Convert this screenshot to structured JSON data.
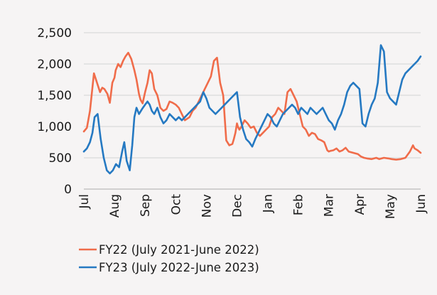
{
  "chart_data": {
    "type": "line",
    "title": "",
    "xlabel": "",
    "ylabel": "",
    "ylim": [
      0,
      2500
    ],
    "yticks": [
      0,
      500,
      1000,
      1500,
      2000,
      2500
    ],
    "ytick_labels": [
      "0",
      "500",
      "1,000",
      "1,500",
      "2,000",
      "2,500"
    ],
    "categories": [
      "Jul",
      "Aug",
      "Sep",
      "Oct",
      "Nov",
      "Dec",
      "Jan",
      "Feb",
      "Mar",
      "Apr",
      "May",
      "Jun"
    ],
    "xlim": [
      0,
      11
    ],
    "grid": "horizontal",
    "legend_position": "bottom",
    "series": [
      {
        "name": "FY22 (July 2021-June 2022)",
        "color": "#f06c4a",
        "x": [
          0,
          0.1,
          0.2,
          0.33,
          0.43,
          0.53,
          0.6,
          0.67,
          0.77,
          0.85,
          0.93,
          1.0,
          1.04,
          1.12,
          1.2,
          1.28,
          1.36,
          1.45,
          1.55,
          1.65,
          1.72,
          1.8,
          1.85,
          1.92,
          2.0,
          2.08,
          2.15,
          2.22,
          2.3,
          2.4,
          2.5,
          2.6,
          2.7,
          2.8,
          2.9,
          3.0,
          3.1,
          3.2,
          3.3,
          3.45,
          3.55,
          3.65,
          3.75,
          3.85,
          3.95,
          4.05,
          4.15,
          4.25,
          4.35,
          4.45,
          4.55,
          4.65,
          4.75,
          4.85,
          4.9,
          4.95,
          5.0,
          5.03,
          5.08,
          5.15,
          5.25,
          5.35,
          5.45,
          5.55,
          5.65,
          5.75,
          5.85,
          5.95,
          6.05,
          6.15,
          6.25,
          6.35,
          6.45,
          6.55,
          6.65,
          6.75,
          6.85,
          6.95,
          7.05,
          7.15,
          7.25,
          7.35,
          7.45,
          7.55,
          7.65,
          7.75,
          7.85,
          7.95,
          8.0,
          8.05,
          8.15,
          8.25,
          8.35,
          8.45,
          8.55,
          8.65,
          8.8,
          8.95,
          9.05,
          9.15,
          9.25,
          9.4,
          9.55,
          9.65,
          9.8,
          9.95,
          10.05,
          10.2,
          10.35,
          10.5,
          10.65,
          10.75,
          10.8,
          10.9,
          11.0
        ],
        "y": [
          920,
          980,
          1250,
          1850,
          1700,
          1550,
          1620,
          1600,
          1520,
          1380,
          1700,
          1780,
          1900,
          2000,
          1950,
          2050,
          2120,
          2180,
          2080,
          1900,
          1750,
          1520,
          1430,
          1370,
          1550,
          1700,
          1900,
          1850,
          1600,
          1500,
          1300,
          1250,
          1280,
          1400,
          1380,
          1350,
          1300,
          1200,
          1100,
          1150,
          1250,
          1300,
          1400,
          1500,
          1600,
          1700,
          1800,
          2050,
          2100,
          1700,
          1500,
          780,
          700,
          720,
          800,
          900,
          1050,
          1000,
          950,
          1000,
          1100,
          1050,
          980,
          1000,
          900,
          850,
          900,
          950,
          1000,
          1150,
          1200,
          1300,
          1250,
          1200,
          1550,
          1600,
          1500,
          1400,
          1200,
          1000,
          950,
          850,
          900,
          880,
          800,
          780,
          750,
          620,
          600,
          610,
          620,
          650,
          600,
          620,
          660,
          600,
          580,
          560,
          520,
          500,
          490,
          480,
          500,
          480,
          500,
          490,
          480,
          470,
          480,
          500,
          600,
          700,
          650,
          620,
          580
        ]
      },
      {
        "name": "FY23 (July 2022-June 2023)",
        "color": "#2579c2",
        "x": [
          0,
          0.1,
          0.2,
          0.28,
          0.35,
          0.45,
          0.55,
          0.65,
          0.75,
          0.85,
          0.95,
          1.05,
          1.15,
          1.25,
          1.32,
          1.4,
          1.5,
          1.58,
          1.65,
          1.72,
          1.8,
          1.9,
          2.0,
          2.08,
          2.15,
          2.22,
          2.3,
          2.4,
          2.5,
          2.6,
          2.7,
          2.8,
          2.9,
          3.0,
          3.1,
          3.2,
          3.3,
          3.4,
          3.5,
          3.6,
          3.7,
          3.8,
          3.9,
          4.0,
          4.1,
          4.2,
          4.3,
          4.4,
          4.5,
          4.6,
          4.7,
          4.8,
          4.9,
          5.0,
          5.1,
          5.2,
          5.3,
          5.4,
          5.5,
          5.6,
          5.7,
          5.8,
          5.9,
          6.0,
          6.1,
          6.2,
          6.3,
          6.4,
          6.5,
          6.6,
          6.7,
          6.8,
          6.9,
          7.0,
          7.1,
          7.2,
          7.3,
          7.4,
          7.5,
          7.6,
          7.7,
          7.8,
          7.9,
          8.0,
          8.1,
          8.2,
          8.3,
          8.4,
          8.5,
          8.6,
          8.7,
          8.8,
          8.9,
          9.0,
          9.1,
          9.2,
          9.3,
          9.4,
          9.5,
          9.6,
          9.7,
          9.8,
          9.9,
          10.0,
          10.1,
          10.2,
          10.3,
          10.4,
          10.5,
          10.6,
          10.7,
          10.8,
          10.9,
          11.0
        ],
        "y": [
          600,
          650,
          750,
          900,
          1150,
          1200,
          800,
          500,
          300,
          250,
          300,
          400,
          350,
          600,
          750,
          450,
          300,
          700,
          1150,
          1300,
          1200,
          1280,
          1350,
          1400,
          1350,
          1250,
          1200,
          1300,
          1150,
          1050,
          1100,
          1200,
          1150,
          1100,
          1150,
          1100,
          1150,
          1200,
          1250,
          1300,
          1350,
          1400,
          1550,
          1450,
          1300,
          1250,
          1200,
          1250,
          1300,
          1350,
          1400,
          1450,
          1500,
          1550,
          1150,
          950,
          800,
          750,
          680,
          800,
          900,
          1000,
          1100,
          1200,
          1150,
          1050,
          1000,
          1100,
          1200,
          1250,
          1300,
          1350,
          1300,
          1200,
          1300,
          1250,
          1200,
          1300,
          1250,
          1200,
          1250,
          1300,
          1200,
          1100,
          1050,
          950,
          1100,
          1200,
          1350,
          1550,
          1650,
          1700,
          1650,
          1600,
          1050,
          1000,
          1200,
          1350,
          1450,
          1700,
          2300,
          2200,
          1550,
          1450,
          1400,
          1350,
          1550,
          1750,
          1850,
          1900,
          1950,
          2000,
          2050,
          2120
        ]
      }
    ]
  }
}
